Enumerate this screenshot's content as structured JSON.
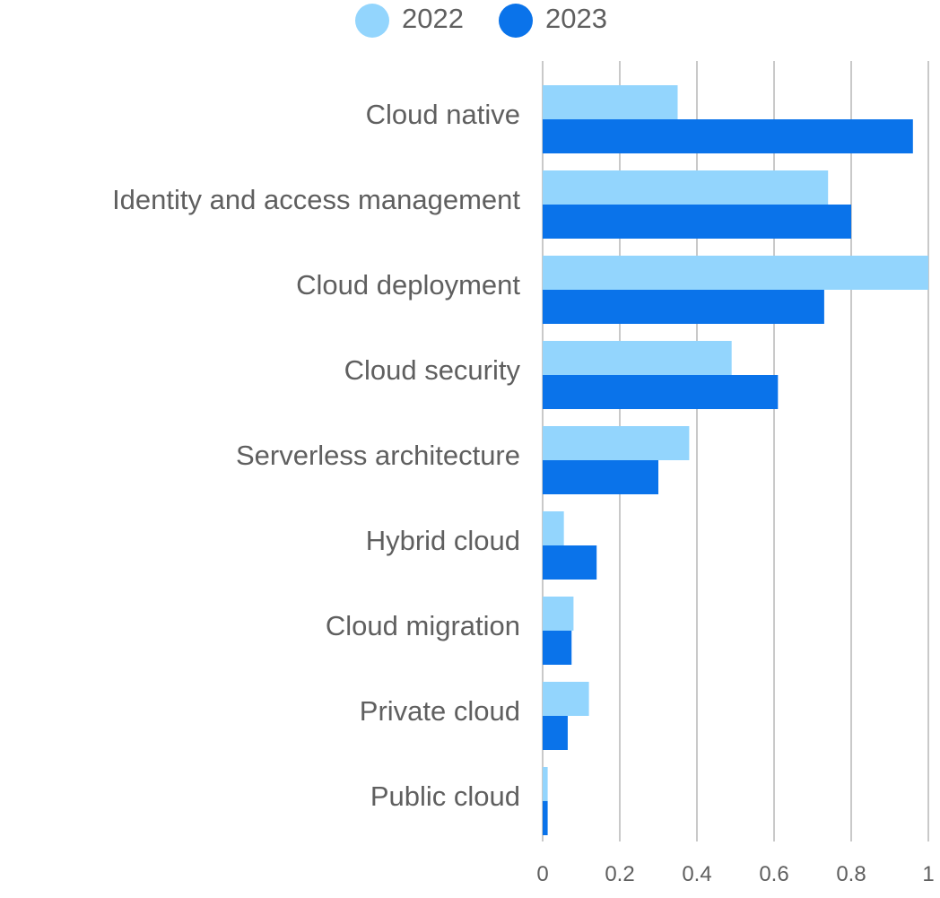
{
  "chart_data": {
    "type": "bar",
    "orientation": "horizontal",
    "categories": [
      "Cloud native",
      "Identity and access management",
      "Cloud deployment",
      "Cloud security",
      "Serverless architecture",
      "Hybrid cloud",
      "Cloud migration",
      "Private cloud",
      "Public cloud"
    ],
    "series": [
      {
        "name": "2022",
        "color": "#93d5fd",
        "values": [
          0.35,
          0.74,
          1.0,
          0.49,
          0.38,
          0.055,
          0.08,
          0.12,
          0.013
        ]
      },
      {
        "name": "2023",
        "color": "#0a73ea",
        "values": [
          0.96,
          0.8,
          0.73,
          0.61,
          0.3,
          0.14,
          0.075,
          0.065,
          0.013
        ]
      }
    ],
    "xlim": [
      0,
      1
    ],
    "xticks": [
      "0",
      "0.2",
      "0.4",
      "0.6",
      "0.8",
      "1"
    ],
    "xtick_values": [
      0,
      0.2,
      0.4,
      0.6,
      0.8,
      1
    ],
    "grid": true,
    "legend": "top-center"
  },
  "colors": {
    "grid": "#c9c9c9",
    "label": "#5f5f5f"
  }
}
